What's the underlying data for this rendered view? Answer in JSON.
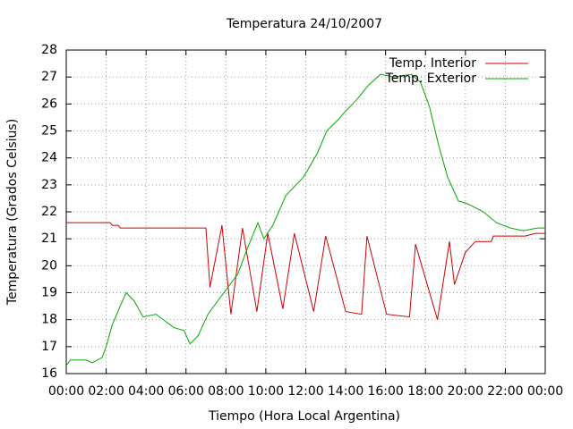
{
  "chart_data": {
    "type": "line",
    "title": "Temperatura 24/10/2007",
    "x_label": "Tiempo (Hora Local Argentina)",
    "y_label": "Temperatura (Grados Celsius)",
    "xlim": [
      0,
      24
    ],
    "xticks": [
      {
        "value": 0,
        "label": "00:00"
      },
      {
        "value": 2,
        "label": "02:00"
      },
      {
        "value": 4,
        "label": "04:00"
      },
      {
        "value": 6,
        "label": "06:00"
      },
      {
        "value": 8,
        "label": "08:00"
      },
      {
        "value": 10,
        "label": "10:00"
      },
      {
        "value": 12,
        "label": "12:00"
      },
      {
        "value": 14,
        "label": "14:00"
      },
      {
        "value": 16,
        "label": "16:00"
      },
      {
        "value": 18,
        "label": "18:00"
      },
      {
        "value": 20,
        "label": "20:00"
      },
      {
        "value": 22,
        "label": "22:00"
      },
      {
        "value": 24,
        "label": "00:00"
      }
    ],
    "ylim": [
      16,
      28
    ],
    "yticks": [
      16,
      17,
      18,
      19,
      20,
      21,
      22,
      23,
      24,
      25,
      26,
      27,
      28
    ],
    "grid": true,
    "legend": "top-right",
    "series": [
      {
        "name": "Temp. Interior",
        "color": "#cc0000",
        "x": [
          0,
          2.2,
          2.3,
          2.6,
          2.7,
          7.0,
          7.2,
          7.8,
          8.25,
          8.83,
          9.55,
          10.1,
          10.85,
          11.43,
          12.4,
          13.0,
          14.0,
          14.8,
          15.07,
          16.05,
          17.2,
          17.5,
          18.6,
          19.2,
          19.45,
          20.0,
          20.5,
          21.3,
          21.4,
          23.0,
          23.5,
          24
        ],
        "values": [
          21.6,
          21.6,
          21.5,
          21.5,
          21.4,
          21.4,
          19.2,
          21.5,
          18.2,
          21.4,
          18.3,
          21.2,
          18.4,
          21.2,
          18.3,
          21.1,
          18.3,
          18.2,
          21.1,
          18.2,
          18.1,
          20.8,
          18.0,
          20.9,
          19.3,
          20.5,
          20.9,
          20.9,
          21.1,
          21.1,
          21.2,
          21.2
        ]
      },
      {
        "name": "Temp. Exterior",
        "color": "#00aa00",
        "x": [
          0,
          0.2,
          1.0,
          1.3,
          1.8,
          2.0,
          2.3,
          2.7,
          3.0,
          3.4,
          3.85,
          4.5,
          5.4,
          5.9,
          6.2,
          6.6,
          7.1,
          7.7,
          8.6,
          9.0,
          9.6,
          9.9,
          10.35,
          11.0,
          11.9,
          12.6,
          13.05,
          13.6,
          13.95,
          14.6,
          15.15,
          15.75,
          16.4,
          17.3,
          17.75,
          18.2,
          18.65,
          19.1,
          19.65,
          20.1,
          20.9,
          21.55,
          22.25,
          22.9,
          23.6,
          24
        ],
        "values": [
          16.3,
          16.5,
          16.5,
          16.4,
          16.6,
          17.0,
          17.8,
          18.5,
          19.0,
          18.7,
          18.1,
          18.2,
          17.7,
          17.6,
          17.1,
          17.4,
          18.2,
          18.8,
          19.7,
          20.5,
          21.6,
          21.0,
          21.5,
          22.6,
          23.3,
          24.2,
          25.0,
          25.4,
          25.7,
          26.2,
          26.7,
          27.1,
          27.0,
          27.1,
          26.8,
          25.9,
          24.5,
          23.3,
          22.4,
          22.3,
          22.0,
          21.6,
          21.4,
          21.3,
          21.4,
          21.4
        ]
      }
    ]
  }
}
